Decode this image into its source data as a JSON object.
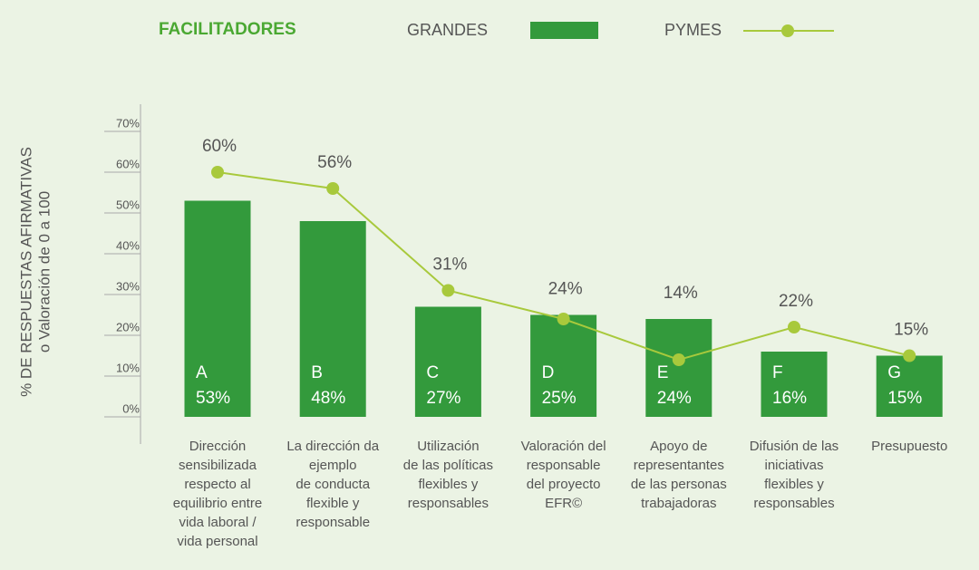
{
  "chart_data": {
    "type": "bar_line",
    "title": "FACILITADORES",
    "y_label": [
      "% DE RESPUESTAS AFIRMATIVAS",
      "o Valoración de 0 a 100"
    ],
    "letters": [
      "A",
      "B",
      "C",
      "D",
      "E",
      "F",
      "G"
    ],
    "categories": [
      [
        "Dirección",
        "sensibilizada",
        "respecto al",
        "equilibrio entre",
        "vida laboral /",
        "vida personal"
      ],
      [
        "La dirección da",
        "ejemplo",
        "de conducta",
        "flexible y",
        "responsable"
      ],
      [
        "Utilización",
        "de las políticas",
        "flexibles y",
        "responsables"
      ],
      [
        "Valoración del",
        "responsable",
        "del proyecto",
        "EFR©"
      ],
      [
        "Apoyo de",
        "representantes",
        "de las personas",
        "trabajadoras"
      ],
      [
        "Difusión de las",
        "iniciativas",
        "flexibles y",
        "responsables"
      ],
      [
        "Presupuesto"
      ]
    ],
    "series": [
      {
        "name": "GRANDES",
        "type": "bar",
        "color": "#339a3c",
        "values": [
          53,
          48,
          27,
          25,
          24,
          16,
          15
        ],
        "value_labels": [
          "53%",
          "48%",
          "27%",
          "25%",
          "24%",
          "16%",
          "15%"
        ]
      },
      {
        "name": "PYMES",
        "type": "line",
        "color": "#a8c93c",
        "values": [
          60,
          56,
          31,
          24,
          14,
          22,
          15
        ],
        "value_labels": [
          "60%",
          "56%",
          "31%",
          "24%",
          "14%",
          "22%",
          "15%"
        ]
      }
    ],
    "ylim": [
      0,
      70
    ],
    "yticks": [
      {
        "value": 0,
        "label": "0%"
      },
      {
        "value": 10,
        "label": "10%"
      },
      {
        "value": 20,
        "label": "20%"
      },
      {
        "value": 30,
        "label": "30%"
      },
      {
        "value": 40,
        "label": "40%"
      },
      {
        "value": 50,
        "label": "50%"
      },
      {
        "value": 60,
        "label": "60%"
      },
      {
        "value": 70,
        "label": "70%"
      }
    ]
  }
}
